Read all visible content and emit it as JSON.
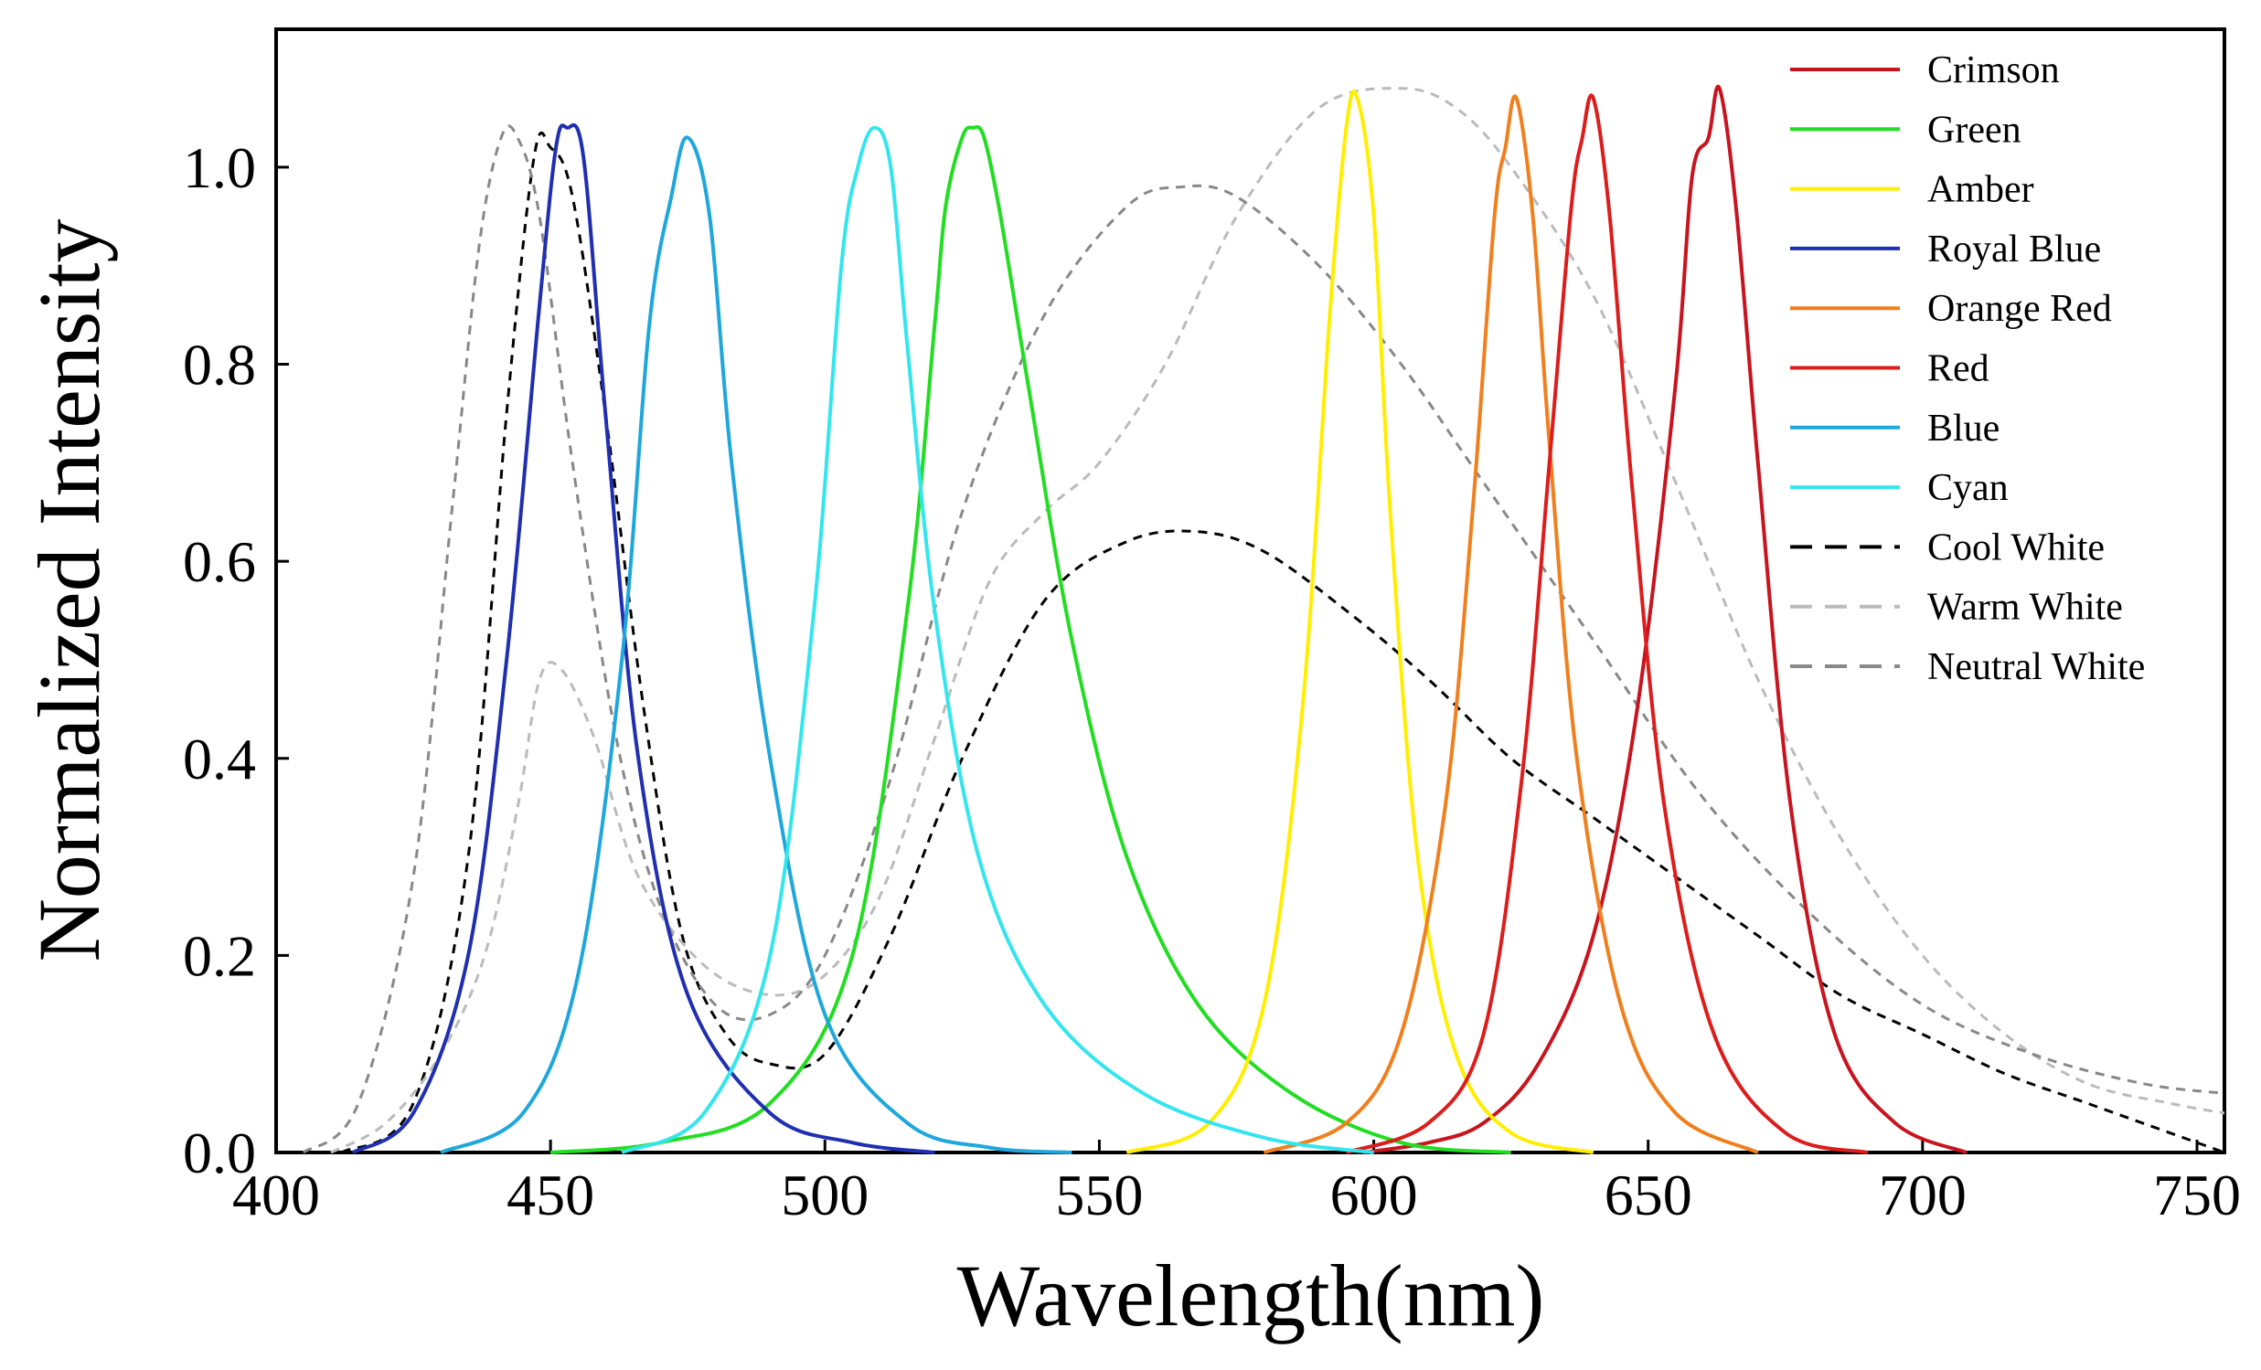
{
  "chart_data": {
    "type": "line",
    "title": "",
    "xlabel": "Wavelength(nm)",
    "ylabel": "Normalized Intensity",
    "xlim": [
      400,
      755
    ],
    "ylim": [
      0.0,
      1.14
    ],
    "xticks": [
      400,
      450,
      500,
      550,
      600,
      650,
      700,
      750
    ],
    "yticks": [
      0.0,
      0.2,
      0.4,
      0.6,
      0.8,
      1.0
    ],
    "xtick_labels": [
      "400",
      "450",
      "500",
      "550",
      "600",
      "650",
      "700",
      "750"
    ],
    "ytick_labels": [
      "0.0",
      "0.2",
      "0.4",
      "0.6",
      "0.8",
      "1.0"
    ],
    "grid": false,
    "legend_position": "top-right",
    "series": [
      {
        "name": "Crimson",
        "color": "#c8141e",
        "dash": "solid",
        "x": [
          598,
          610,
          620,
          630,
          640,
          648,
          655,
          658,
          661,
          663,
          666,
          670,
          676,
          684,
          695,
          708
        ],
        "y": [
          0.0,
          0.01,
          0.03,
          0.09,
          0.22,
          0.45,
          0.78,
          0.99,
          1.03,
          1.08,
          0.96,
          0.7,
          0.35,
          0.12,
          0.03,
          0.0
        ]
      },
      {
        "name": "Green",
        "color": "#22dd22",
        "dash": "solid",
        "x": [
          450,
          470,
          490,
          505,
          515,
          520,
          522,
          525,
          527,
          529,
          532,
          537,
          545,
          555,
          568,
          585,
          605,
          625
        ],
        "y": [
          0.0,
          0.01,
          0.05,
          0.2,
          0.55,
          0.84,
          0.96,
          1.03,
          1.04,
          1.03,
          0.95,
          0.78,
          0.52,
          0.3,
          0.15,
          0.06,
          0.01,
          0.0
        ]
      },
      {
        "name": "Amber",
        "color": "#ffee00",
        "dash": "solid",
        "x": [
          555,
          570,
          580,
          587,
          592,
          595,
          597,
          600,
          603,
          608,
          615,
          625,
          640
        ],
        "y": [
          0.0,
          0.03,
          0.15,
          0.45,
          0.85,
          1.04,
          1.07,
          0.95,
          0.65,
          0.3,
          0.1,
          0.02,
          0.0
        ]
      },
      {
        "name": "Royal Blue",
        "color": "#1f2fb0",
        "dash": "solid",
        "x": [
          414,
          425,
          435,
          442,
          448,
          451,
          453,
          456,
          460,
          466,
          475,
          490,
          505,
          520
        ],
        "y": [
          0.0,
          0.04,
          0.2,
          0.5,
          0.86,
          1.02,
          1.04,
          1.01,
          0.75,
          0.4,
          0.16,
          0.04,
          0.01,
          0.0
        ]
      },
      {
        "name": "Orange Red",
        "color": "#f07f1e",
        "dash": "solid",
        "x": [
          580,
          595,
          605,
          613,
          618,
          622,
          624,
          626,
          629,
          632,
          637,
          645,
          655,
          670
        ],
        "y": [
          0.0,
          0.03,
          0.12,
          0.35,
          0.65,
          0.95,
          1.02,
          1.07,
          0.95,
          0.72,
          0.4,
          0.15,
          0.04,
          0.0
        ]
      },
      {
        "name": "Red",
        "color": "#dd1c1c",
        "dash": "solid",
        "x": [
          595,
          610,
          620,
          627,
          632,
          636,
          638,
          640,
          643,
          647,
          653,
          662,
          675,
          690
        ],
        "y": [
          0.0,
          0.03,
          0.12,
          0.38,
          0.7,
          0.96,
          1.03,
          1.07,
          0.95,
          0.68,
          0.35,
          0.12,
          0.02,
          0.0
        ]
      },
      {
        "name": "Blue",
        "color": "#1fa7dc",
        "dash": "solid",
        "x": [
          430,
          445,
          455,
          463,
          468,
          472,
          475,
          479,
          483,
          490,
          500,
          515,
          530,
          545
        ],
        "y": [
          0.0,
          0.04,
          0.18,
          0.5,
          0.84,
          0.97,
          1.03,
          0.95,
          0.7,
          0.4,
          0.14,
          0.03,
          0.005,
          0.0
        ]
      },
      {
        "name": "Cyan",
        "color": "#33e6ee",
        "dash": "solid",
        "x": [
          463,
          478,
          490,
          498,
          503,
          506,
          509,
          512,
          515,
          520,
          528,
          540,
          558,
          580,
          600
        ],
        "y": [
          0.0,
          0.04,
          0.2,
          0.55,
          0.9,
          1.0,
          1.04,
          1.0,
          0.82,
          0.55,
          0.3,
          0.15,
          0.06,
          0.015,
          0.0
        ]
      },
      {
        "name": "Cool White",
        "color": "#000000",
        "dash": "dashed",
        "x": [
          412,
          425,
          435,
          442,
          447,
          450,
          454,
          460,
          467,
          474,
          482,
          490,
          500,
          512,
          525,
          540,
          555,
          568,
          580,
          595,
          610,
          625,
          640,
          655,
          670,
          685,
          700,
          715,
          730,
          745,
          755
        ],
        "y": [
          0.0,
          0.05,
          0.3,
          0.75,
          1.01,
          1.02,
          0.97,
          0.75,
          0.45,
          0.22,
          0.12,
          0.09,
          0.1,
          0.22,
          0.4,
          0.56,
          0.62,
          0.63,
          0.61,
          0.55,
          0.48,
          0.4,
          0.34,
          0.28,
          0.22,
          0.16,
          0.12,
          0.08,
          0.05,
          0.02,
          0.0
        ]
      },
      {
        "name": "Warm White",
        "color": "#bbbbbb",
        "dash": "dashed",
        "x": [
          410,
          420,
          430,
          438,
          444,
          448,
          452,
          458,
          466,
          478,
          490,
          500,
          510,
          520,
          530,
          540,
          550,
          562,
          575,
          590,
          605,
          615,
          625,
          640,
          655,
          670,
          685,
          700,
          715,
          730,
          745,
          755
        ],
        "y": [
          0.0,
          0.03,
          0.1,
          0.2,
          0.35,
          0.48,
          0.49,
          0.42,
          0.28,
          0.19,
          0.16,
          0.18,
          0.26,
          0.42,
          0.58,
          0.65,
          0.7,
          0.8,
          0.95,
          1.06,
          1.08,
          1.06,
          1.0,
          0.87,
          0.68,
          0.48,
          0.32,
          0.2,
          0.12,
          0.07,
          0.05,
          0.04
        ]
      },
      {
        "name": "Neutral White",
        "color": "#888888",
        "dash": "dashed",
        "x": [
          405,
          415,
          425,
          432,
          437,
          441,
          444,
          448,
          454,
          462,
          470,
          480,
          490,
          500,
          512,
          525,
          540,
          555,
          565,
          575,
          590,
          605,
          620,
          640,
          660,
          680,
          700,
          720,
          740,
          755
        ],
        "y": [
          0.0,
          0.05,
          0.28,
          0.65,
          0.92,
          1.03,
          1.03,
          0.95,
          0.7,
          0.42,
          0.25,
          0.15,
          0.14,
          0.2,
          0.38,
          0.65,
          0.85,
          0.96,
          0.98,
          0.97,
          0.9,
          0.8,
          0.68,
          0.52,
          0.36,
          0.24,
          0.15,
          0.1,
          0.07,
          0.06
        ]
      }
    ]
  }
}
